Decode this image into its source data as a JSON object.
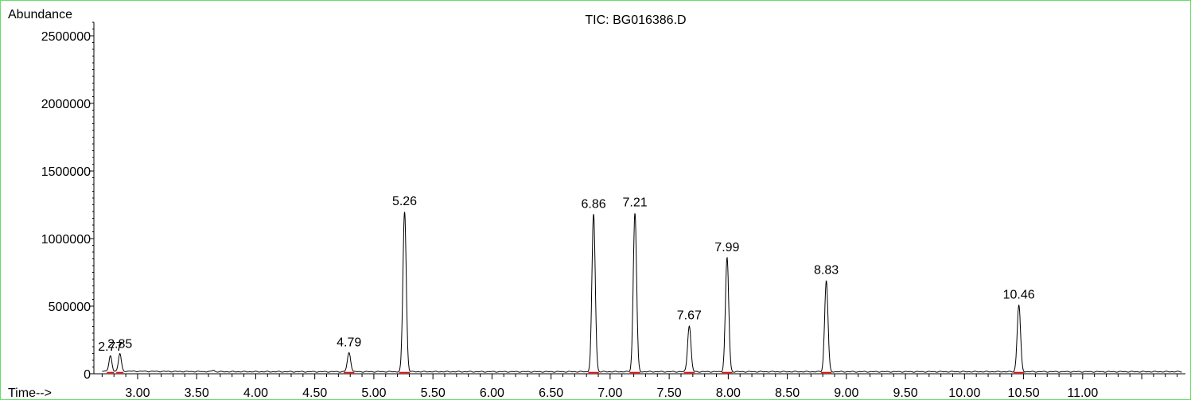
{
  "chart_data": {
    "type": "line",
    "title": "TIC: BG016386.D",
    "ylabel": "Abundance",
    "xlabel": "Time-->",
    "xlim": [
      2.63,
      11.87
    ],
    "ylim": [
      0,
      2600000
    ],
    "x_ticks": [
      "3.00",
      "3.50",
      "4.00",
      "4.50",
      "5.00",
      "5.50",
      "6.00",
      "6.50",
      "7.00",
      "7.50",
      "8.00",
      "8.50",
      "9.00",
      "9.50",
      "10.00",
      "10.50",
      "11.00"
    ],
    "y_ticks": [
      "0",
      "500000",
      "1000000",
      "1500000",
      "2000000",
      "2500000"
    ],
    "baseline": 15000,
    "peaks": [
      {
        "rt": 2.77,
        "label": "2.77",
        "height": 125000
      },
      {
        "rt": 2.85,
        "label": "2.85",
        "height": 145000
      },
      {
        "rt": 4.79,
        "label": "4.79",
        "height": 155000
      },
      {
        "rt": 5.26,
        "label": "5.26",
        "height": 1200000
      },
      {
        "rt": 6.86,
        "label": "6.86",
        "height": 1180000
      },
      {
        "rt": 7.21,
        "label": "7.21",
        "height": 1190000
      },
      {
        "rt": 7.67,
        "label": "7.67",
        "height": 355000
      },
      {
        "rt": 7.99,
        "label": "7.99",
        "height": 860000
      },
      {
        "rt": 8.83,
        "label": "8.83",
        "height": 690000
      },
      {
        "rt": 10.46,
        "label": "10.46",
        "height": 510000
      }
    ],
    "trace_color": "#000000",
    "integration_baseline_color": "#ff0000",
    "frame_color": "#66dd66"
  }
}
